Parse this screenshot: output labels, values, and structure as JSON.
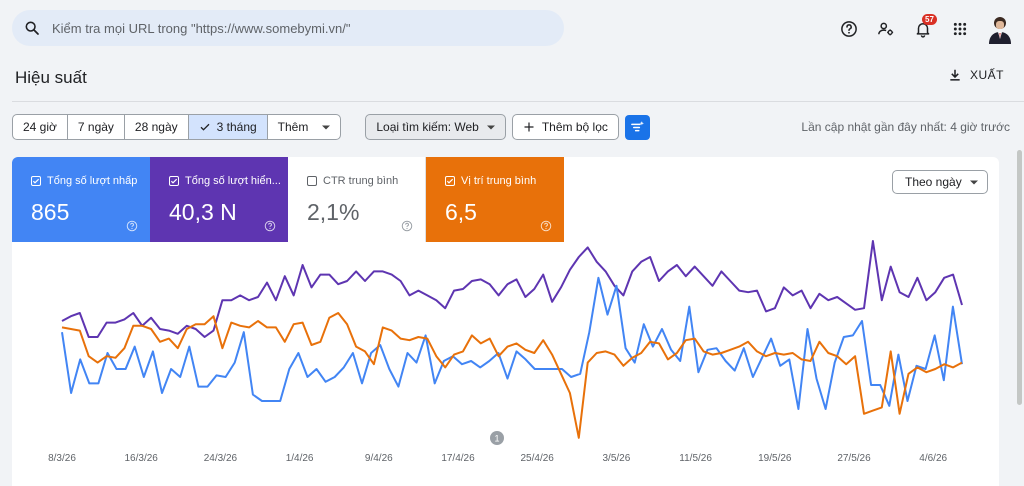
{
  "search": {
    "placeholder": "Kiểm tra mọi URL trong \"https://www.somebymi.vn/\""
  },
  "header": {
    "notifications_count": "57",
    "icons": [
      "help-icon",
      "manage-users-icon",
      "notifications-icon",
      "apps-icon",
      "avatar"
    ]
  },
  "page": {
    "title": "Hiệu suất",
    "export_label": "XUẤT"
  },
  "filters": {
    "ranges": [
      {
        "label": "24 giờ",
        "selected": false
      },
      {
        "label": "7 ngày",
        "selected": false
      },
      {
        "label": "28 ngày",
        "selected": false
      },
      {
        "label": "3 tháng",
        "selected": true
      },
      {
        "label": "Thêm",
        "selected": false
      }
    ],
    "search_type": "Loại tìm kiếm: Web",
    "add_filter": "Thêm bộ lọc",
    "last_updated": "Lần cập nhật gần đây nhất: 4 giờ trước"
  },
  "metrics": [
    {
      "label": "Tổng số lượt nhấp",
      "value": "865",
      "checked": true,
      "color": "#4285f4"
    },
    {
      "label": "Tổng số lượt hiển...",
      "value": "40,3 N",
      "checked": true,
      "color": "#5e35b1"
    },
    {
      "label": "CTR trung bình",
      "value": "2,1%",
      "checked": false,
      "color": "#ffffff"
    },
    {
      "label": "Vị trí trung bình",
      "value": "6,5",
      "checked": true,
      "color": "#e8710a"
    }
  ],
  "chart_controls": {
    "group_by": "Theo ngày",
    "annotation_marker": "1"
  },
  "chart_data": {
    "type": "line",
    "x_tick_labels": [
      "8/3/26",
      "16/3/26",
      "24/3/26",
      "1/4/26",
      "9/4/26",
      "17/4/26",
      "25/4/26",
      "3/5/26",
      "11/5/26",
      "19/5/26",
      "27/5/26",
      "4/6/26"
    ],
    "series": [
      {
        "color": "#5e35b1",
        "values": [
          40,
          43,
          45,
          30,
          30,
          39,
          39,
          41,
          45,
          37,
          42,
          35,
          34,
          32,
          37,
          35,
          30,
          34,
          53,
          53,
          56,
          53,
          55,
          64,
          53,
          68,
          56,
          75,
          61,
          69,
          69,
          63,
          65,
          71,
          65,
          71,
          71,
          69,
          65,
          56,
          59,
          56,
          53,
          48,
          59,
          60,
          65,
          66,
          63,
          56,
          63,
          66,
          55,
          60,
          69,
          52,
          61,
          72,
          80,
          86,
          77,
          71,
          62,
          56,
          71,
          77,
          80,
          65,
          71,
          75,
          68,
          74,
          68,
          62,
          71,
          65,
          59,
          58,
          59,
          46,
          48,
          61,
          56,
          59,
          48,
          57,
          53,
          55,
          51,
          47,
          48,
          90,
          53,
          74,
          58,
          55,
          67,
          53,
          58,
          67,
          69,
          50
        ]
      },
      {
        "color": "#4285f4",
        "values": [
          33,
          -5,
          16,
          1,
          1,
          20,
          10,
          10,
          24,
          5,
          21,
          -5,
          10,
          5,
          24,
          -1,
          -1,
          6,
          5,
          14,
          33,
          -6,
          -10,
          -10,
          -10,
          10,
          20,
          5,
          10,
          2,
          5,
          11,
          20,
          1,
          20,
          25,
          10,
          -1,
          20,
          14,
          31,
          1,
          15,
          18,
          13,
          15,
          11,
          15,
          20,
          4,
          21,
          16,
          10,
          10,
          10,
          10,
          5,
          7,
          33,
          67,
          44,
          62,
          23,
          14,
          38,
          24,
          35,
          22,
          15,
          49,
          8,
          22,
          23,
          15,
          9,
          23,
          5,
          17,
          29,
          12,
          16,
          -15,
          35,
          4,
          -15,
          14,
          30,
          31,
          40,
          0,
          0,
          -13,
          19,
          -10,
          12,
          10,
          31,
          3,
          49,
          13
        ]
      },
      {
        "color": "#e8710a",
        "values": [
          36,
          35,
          34,
          18,
          14,
          18,
          17,
          23,
          37,
          37,
          35,
          27,
          29,
          23,
          35,
          38,
          38,
          43,
          23,
          39,
          37,
          36,
          40,
          36,
          36,
          27,
          38,
          39,
          25,
          27,
          42,
          45,
          38,
          24,
          21,
          13,
          36,
          34,
          29,
          28,
          30,
          29,
          18,
          11,
          19,
          21,
          31,
          26,
          29,
          18,
          24,
          26,
          22,
          20,
          28,
          19,
          7,
          -5,
          -33,
          14,
          20,
          21,
          19,
          12,
          17,
          20,
          27,
          26,
          16,
          20,
          28,
          29,
          21,
          19,
          20,
          22,
          24,
          27,
          21,
          18,
          20,
          19,
          20,
          16,
          15,
          27,
          20,
          18,
          13,
          18,
          -18,
          -16,
          -14,
          21,
          -18,
          7,
          11,
          8,
          10,
          13,
          11,
          14
        ]
      }
    ],
    "grid": false,
    "legend": "none"
  }
}
